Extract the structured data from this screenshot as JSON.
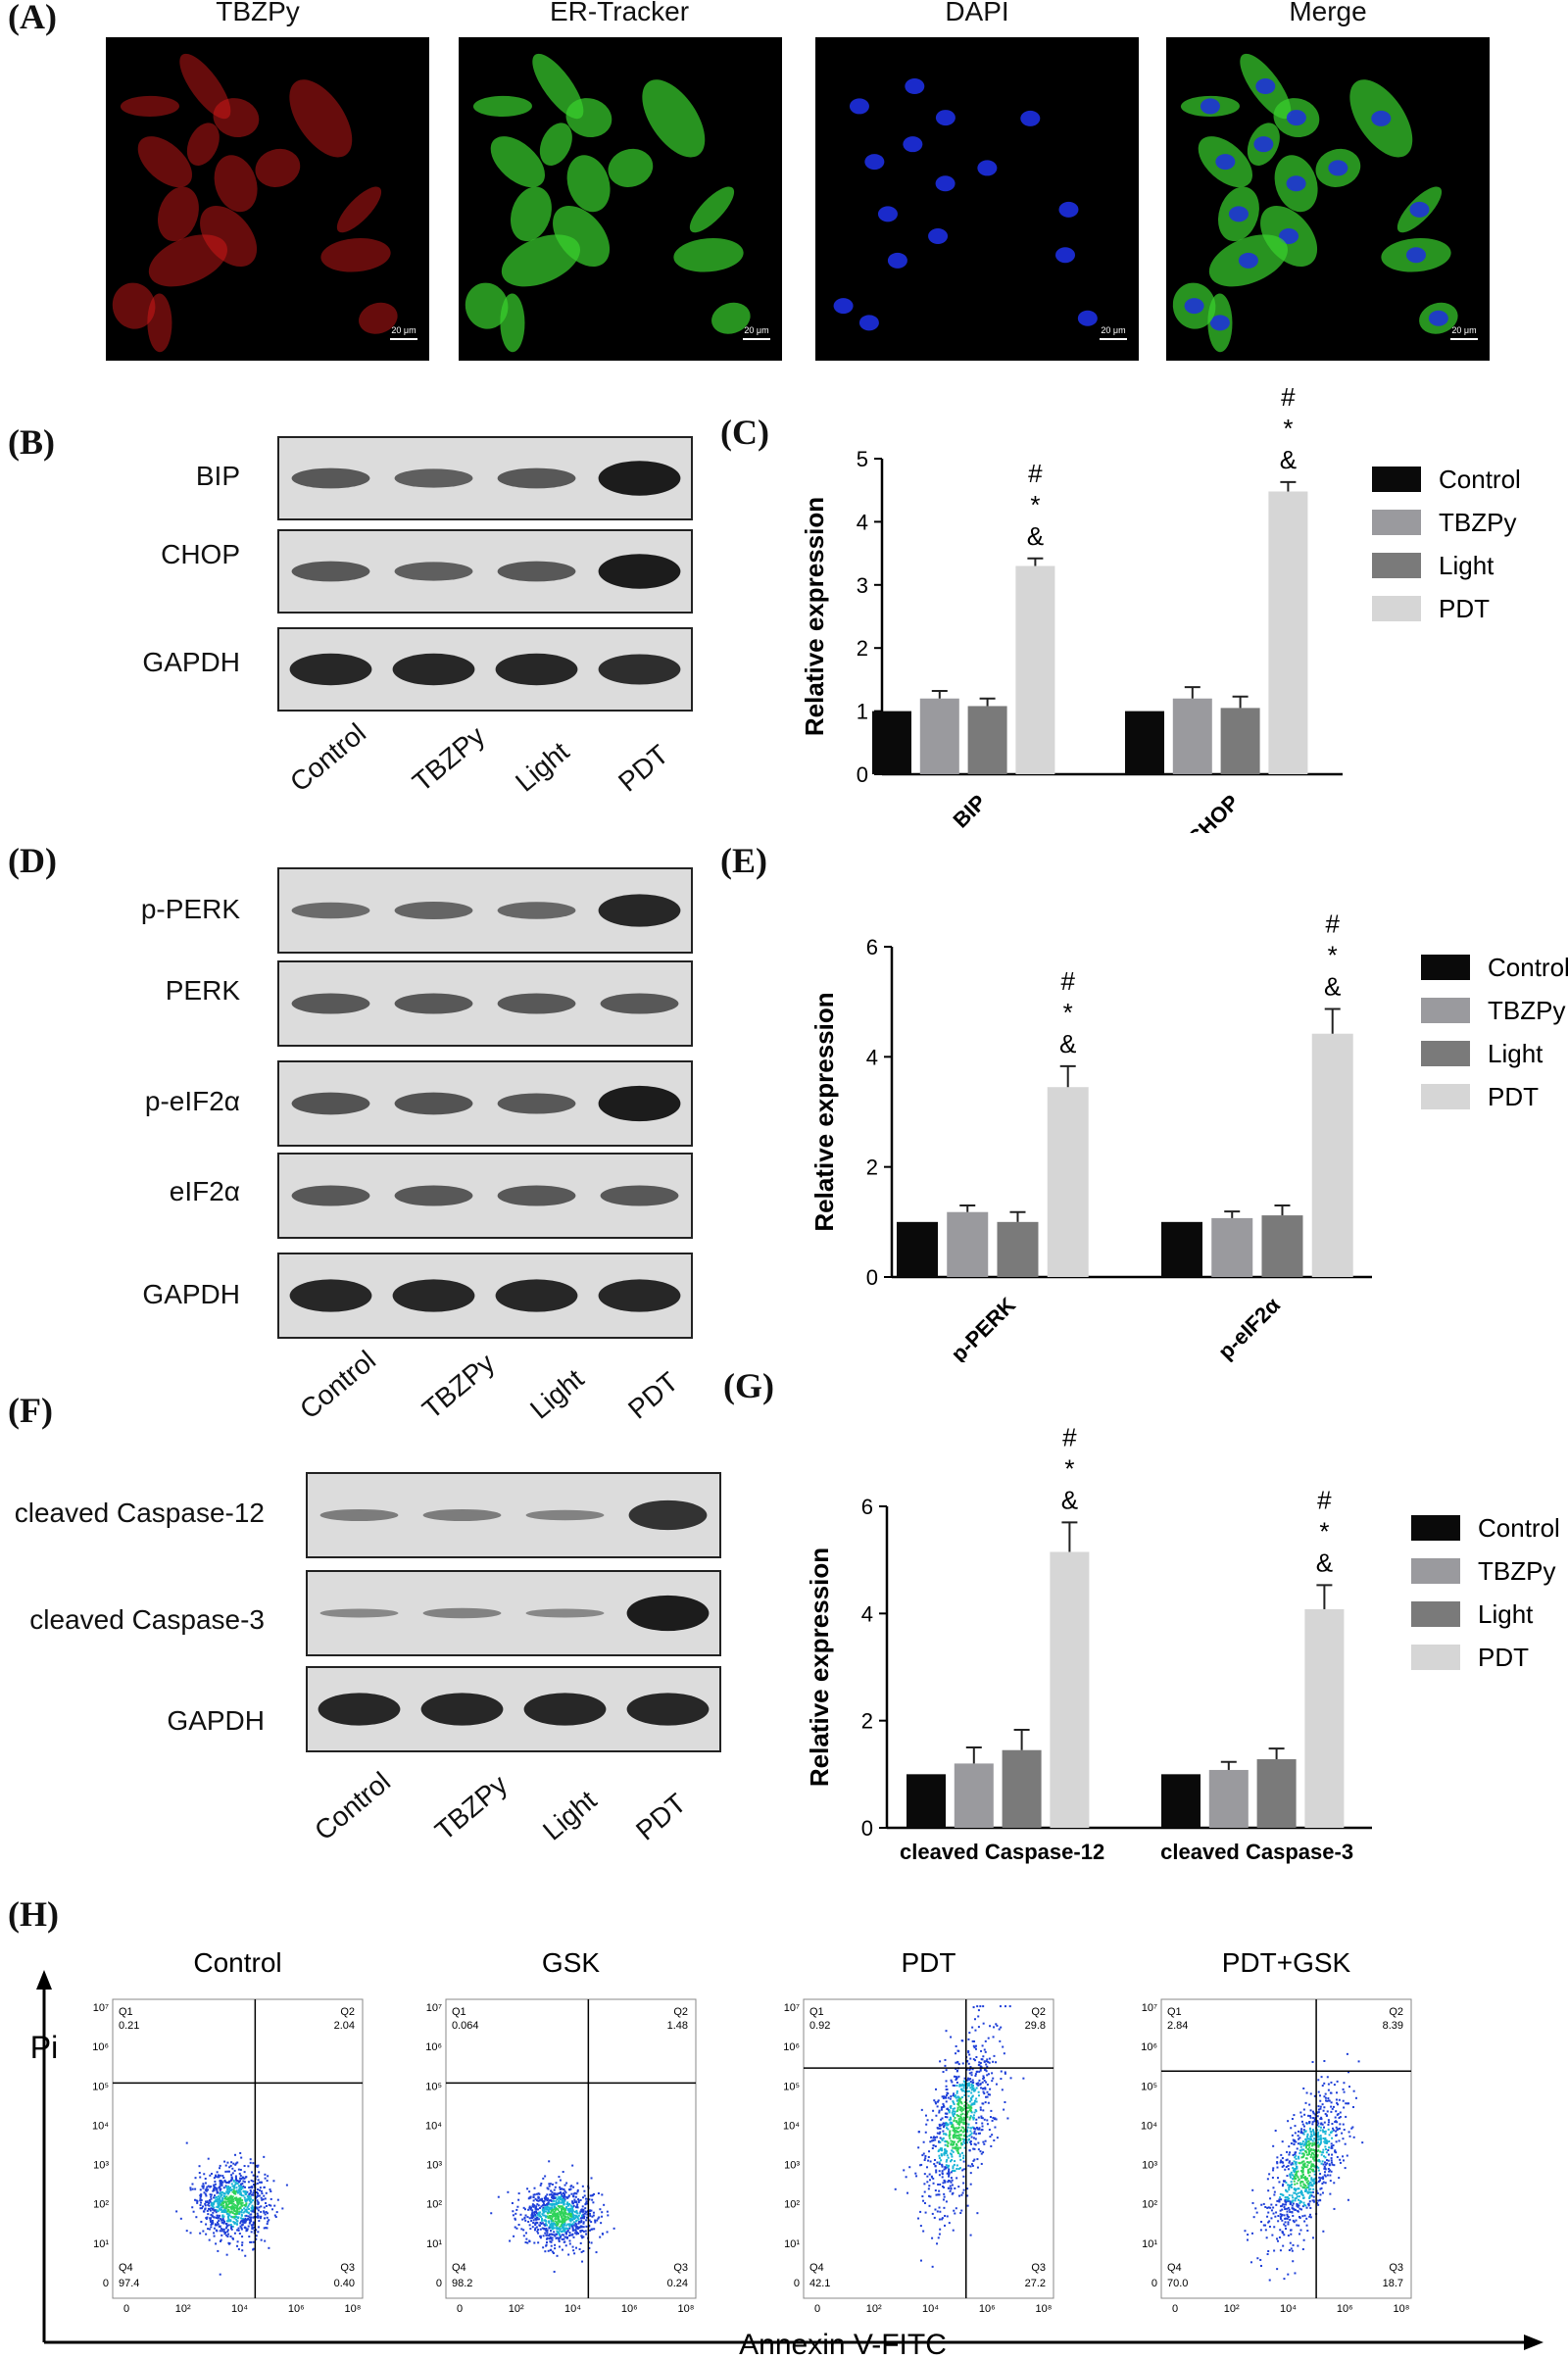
{
  "panel_labels": {
    "a": "(A)",
    "b": "(B)",
    "c": "(C)",
    "d": "(D)",
    "e": "(E)",
    "f": "(F)",
    "g": "(G)",
    "h": "(H)"
  },
  "microscopy": {
    "titles": [
      "TBZPy",
      "ER-Tracker",
      "DAPI",
      "Merge"
    ],
    "scale_bar": "20 μm",
    "colors": [
      "#e21b1b",
      "#39d12e",
      "#1d2fe0",
      "#3fd43a"
    ]
  },
  "blot_b": {
    "rows": [
      "BIP",
      "CHOP",
      "GAPDH"
    ],
    "lanes": [
      "Control",
      "TBZPy",
      "Light",
      "PDT"
    ]
  },
  "blot_d": {
    "rows": [
      "p-PERK",
      "PERK",
      "p-eIF2α",
      "eIF2α",
      "GAPDH"
    ],
    "lanes": [
      "Control",
      "TBZPy",
      "Light",
      "PDT"
    ]
  },
  "blot_f": {
    "rows": [
      "cleaved Caspase-12",
      "cleaved Caspase-3",
      "GAPDH"
    ],
    "lanes": [
      "Control",
      "TBZPy",
      "Light",
      "PDT"
    ]
  },
  "legend": [
    "Control",
    "TBZPy",
    "Light",
    "PDT"
  ],
  "series_colors": [
    "#0a0a0a",
    "#9a9a9e",
    "#7a7a7a",
    "#d6d6d6"
  ],
  "sig_marks": [
    "#",
    "*",
    "&"
  ],
  "chart_data": [
    {
      "type": "bar",
      "categories": [
        "BIP",
        "CHOP"
      ],
      "ylabel": "Relative expression",
      "ylim": [
        0,
        5
      ],
      "yticks": [
        0,
        1,
        2,
        3,
        4,
        5
      ],
      "series": [
        {
          "name": "Control",
          "values": [
            1.0,
            1.0
          ],
          "errors": [
            0,
            0
          ]
        },
        {
          "name": "TBZPy",
          "values": [
            1.2,
            1.2
          ],
          "errors": [
            0.12,
            0.18
          ]
        },
        {
          "name": "Light",
          "values": [
            1.08,
            1.05
          ],
          "errors": [
            0.12,
            0.18
          ]
        },
        {
          "name": "PDT",
          "values": [
            3.3,
            4.48
          ],
          "errors": [
            0.12,
            0.15
          ]
        }
      ]
    },
    {
      "type": "bar",
      "categories": [
        "p-PERK",
        "p-eIF2α"
      ],
      "ylabel": "Relative expression",
      "ylim": [
        0,
        6
      ],
      "yticks": [
        0,
        2,
        4,
        6
      ],
      "series": [
        {
          "name": "Control",
          "values": [
            1.0,
            1.0
          ],
          "errors": [
            0,
            0
          ]
        },
        {
          "name": "TBZPy",
          "values": [
            1.18,
            1.07
          ],
          "errors": [
            0.12,
            0.12
          ]
        },
        {
          "name": "Light",
          "values": [
            1.0,
            1.12
          ],
          "errors": [
            0.18,
            0.18
          ]
        },
        {
          "name": "PDT",
          "values": [
            3.45,
            4.42
          ],
          "errors": [
            0.38,
            0.45
          ]
        }
      ]
    },
    {
      "type": "bar",
      "categories": [
        "cleaved Caspase-12",
        "cleaved Caspase-3"
      ],
      "ylabel": "Relative expression",
      "ylim": [
        0,
        6
      ],
      "yticks": [
        0,
        2,
        4,
        6
      ],
      "series": [
        {
          "name": "Control",
          "values": [
            1.0,
            1.0
          ],
          "errors": [
            0,
            0
          ]
        },
        {
          "name": "TBZPy",
          "values": [
            1.2,
            1.08
          ],
          "errors": [
            0.3,
            0.15
          ]
        },
        {
          "name": "Light",
          "values": [
            1.45,
            1.28
          ],
          "errors": [
            0.38,
            0.2
          ]
        },
        {
          "name": "PDT",
          "values": [
            5.15,
            4.08
          ],
          "errors": [
            0.55,
            0.45
          ]
        }
      ]
    },
    {
      "type": "scatter",
      "title": "(H)",
      "xlabel": "Annexin V-FITC",
      "ylabel": "Pi",
      "panels": [
        {
          "name": "Control",
          "Q1": "0.21",
          "Q2": "2.04",
          "Q3": "0.40",
          "Q4": "97.4"
        },
        {
          "name": "GSK",
          "Q1": "0.064",
          "Q2": "1.48",
          "Q3": "0.24",
          "Q4": "98.2"
        },
        {
          "name": "PDT",
          "Q1": "0.92",
          "Q2": "29.8",
          "Q3": "27.2",
          "Q4": "42.1"
        },
        {
          "name": "PDT+GSK",
          "Q1": "2.84",
          "Q2": "8.39",
          "Q3": "18.7",
          "Q4": "70.0"
        }
      ],
      "quadrant_names": [
        "Q1",
        "Q2",
        "Q3",
        "Q4"
      ],
      "x_ticks": [
        "0",
        "10²",
        "10⁴",
        "10⁶",
        "10⁸"
      ],
      "y_ticks": [
        "0",
        "10¹",
        "10²",
        "10³",
        "10⁴",
        "10⁵",
        "10⁶",
        "10⁷"
      ]
    }
  ]
}
